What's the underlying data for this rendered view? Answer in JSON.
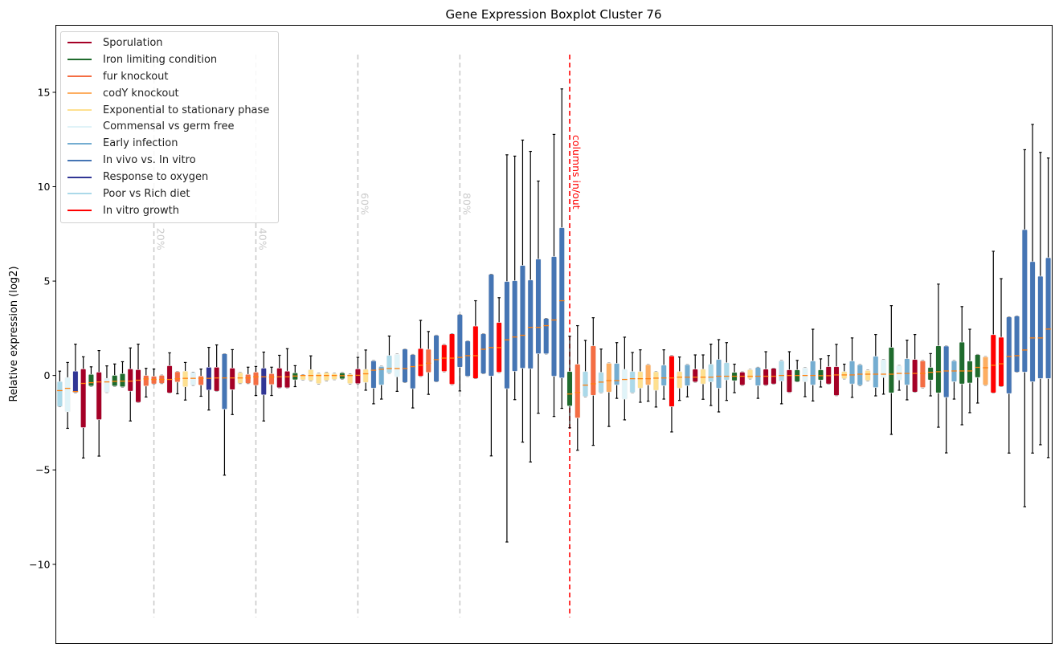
{
  "chart_data": {
    "type": "boxplot",
    "title": "Gene Expression Boxplot Cluster 76",
    "xlabel": "",
    "ylabel": "Relative expression (log2)",
    "ylim": [
      -14.2,
      18.55
    ],
    "xlim": [
      0.5,
      127.5
    ],
    "yticks": [
      -10,
      -5,
      0,
      5,
      10,
      15
    ],
    "ytick_labels": [
      "−10",
      "−5",
      "0",
      "5",
      "10",
      "15"
    ],
    "grid": false,
    "legend_position": "top-left",
    "median_color": "#ff7f0e",
    "groups": [
      {
        "key": "S",
        "name": "Sporulation",
        "color": "#a50026"
      },
      {
        "key": "I",
        "name": "Iron limiting condition",
        "color": "#1f6b2d"
      },
      {
        "key": "F",
        "name": "fur knockout",
        "color": "#f46d43"
      },
      {
        "key": "C",
        "name": "codY knockout",
        "color": "#fdae61"
      },
      {
        "key": "E",
        "name": "Exponential to stationary phase",
        "color": "#fee090"
      },
      {
        "key": "M",
        "name": "Commensal vs germ free",
        "color": "#e0f3f8"
      },
      {
        "key": "A",
        "name": "Early infection",
        "color": "#74add1"
      },
      {
        "key": "V",
        "name": "In vivo vs. In vitro",
        "color": "#4575b4"
      },
      {
        "key": "O",
        "name": "Response to oxygen",
        "color": "#313695"
      },
      {
        "key": "P",
        "name": "Poor vs Rich diet",
        "color": "#abd9e9"
      },
      {
        "key": "R",
        "name": "In vitro growth",
        "color": "#ff0000"
      }
    ],
    "vlines": [
      {
        "x": 13,
        "label": "20%",
        "color": "#c8c8c8"
      },
      {
        "x": 26,
        "label": "40%",
        "color": "#c8c8c8"
      },
      {
        "x": 39,
        "label": "60%",
        "color": "#c8c8c8"
      },
      {
        "x": 52,
        "label": "80%",
        "color": "#c8c8c8"
      },
      {
        "x": 66,
        "label": "columns in/out",
        "color": "#ff0000"
      }
    ],
    "vline_range": [
      -12.8,
      17.0
    ],
    "box_fields": [
      "group",
      "whisker_low",
      "q1",
      "median",
      "q3",
      "whisker_high"
    ],
    "boxes": [
      [
        "P",
        -1.65,
        -1.65,
        -0.8,
        -0.32,
        0.23
      ],
      [
        "M",
        -2.8,
        -1.92,
        -0.68,
        -0.11,
        0.69
      ],
      [
        "O",
        -0.9,
        -0.9,
        -0.85,
        0.23,
        1.66
      ],
      [
        "S",
        -4.37,
        -2.76,
        -0.42,
        0.35,
        0.99
      ],
      [
        "I",
        -0.56,
        -0.56,
        -0.38,
        0.06,
        0.46
      ],
      [
        "S",
        -4.27,
        -2.34,
        -0.34,
        0.18,
        1.32
      ],
      [
        "M",
        -0.89,
        -0.89,
        -0.34,
        -0.15,
        0.51
      ],
      [
        "I",
        -0.56,
        -0.56,
        -0.31,
        0.01,
        0.61
      ],
      [
        "I",
        -0.6,
        -0.6,
        -0.3,
        0.1,
        0.73
      ],
      [
        "S",
        -2.41,
        -0.83,
        -0.3,
        0.35,
        1.46
      ],
      [
        "S",
        -1.42,
        -1.42,
        -0.25,
        0.31,
        1.66
      ],
      [
        "F",
        -1.14,
        -0.56,
        -0.18,
        0,
        0.38
      ],
      [
        "F",
        -0.45,
        -0.45,
        -0.21,
        -0.04,
        0.34
      ],
      [
        "F",
        -0.42,
        -0.42,
        -0.21,
        0.01,
        0.01
      ],
      [
        "S",
        -0.92,
        -0.92,
        -0.21,
        0.52,
        1.2
      ],
      [
        "F",
        -0.97,
        -0.35,
        -0.17,
        0.2,
        0.2
      ],
      [
        "E",
        -1.3,
        -0.6,
        -0.15,
        0.23,
        0.69
      ],
      [
        "M",
        -0.51,
        -0.51,
        -0.15,
        0.17,
        0.17
      ],
      [
        "F",
        -1.1,
        -0.51,
        -0.15,
        -0.03,
        0.34
      ],
      [
        "O",
        -1.83,
        -0.77,
        -0.15,
        0.44,
        1.49
      ],
      [
        "S",
        -0.83,
        -0.83,
        -0.13,
        0.44,
        1.62
      ],
      [
        "V",
        -5.28,
        -1.79,
        -0.13,
        1.15,
        1.15
      ],
      [
        "S",
        -2.07,
        -0.75,
        -0.13,
        0.39,
        1.37
      ],
      [
        "E",
        -0.42,
        -0.42,
        -0.13,
        0.15,
        0.15
      ],
      [
        "F",
        -0.42,
        -0.42,
        -0.13,
        0.06,
        0.44
      ],
      [
        "F",
        -1.06,
        -0.52,
        -0.07,
        0.18,
        0.48
      ],
      [
        "O",
        -2.41,
        -1.03,
        -0.07,
        0.39,
        1.24
      ],
      [
        "F",
        -1.06,
        -0.48,
        -0.08,
        0.1,
        0.44
      ],
      [
        "S",
        -0.65,
        -0.65,
        -0.07,
        0.39,
        1.07
      ],
      [
        "S",
        -0.65,
        -0.65,
        -0.07,
        0.23,
        1.42
      ],
      [
        "I",
        -0.59,
        -0.23,
        -0.03,
        0.14,
        0.52
      ],
      [
        "E",
        -0.23,
        -0.23,
        0,
        0.04,
        0.04
      ],
      [
        "E",
        -0.27,
        -0.27,
        0,
        0.31,
        1.04
      ],
      [
        "E",
        -0.43,
        -0.43,
        0,
        0.1,
        0.1
      ],
      [
        "E",
        -0.27,
        -0.27,
        0,
        0.16,
        0.16
      ],
      [
        "E",
        -0.21,
        -0.21,
        0,
        0.1,
        0.1
      ],
      [
        "I",
        -0.18,
        -0.18,
        -0.01,
        0.14,
        0.14
      ],
      [
        "E",
        -0.43,
        -0.43,
        0,
        0.07,
        0.07
      ],
      [
        "S",
        -0.43,
        -0.43,
        0.01,
        0.35,
        0.96
      ],
      [
        "E",
        -0.78,
        -0.37,
        0.09,
        0.33,
        1.35
      ],
      [
        "V",
        -1.5,
        -0.67,
        0.28,
        0.78,
        0.78
      ],
      [
        "A",
        -1.25,
        -0.5,
        0.33,
        0.48,
        0.48
      ],
      [
        "P",
        0.13,
        0.13,
        0.37,
        1.06,
        2.09
      ],
      [
        "M",
        -0.84,
        -0.07,
        0.37,
        1.12,
        1.12
      ],
      [
        "V",
        -0.37,
        -0.37,
        0.37,
        1.4,
        1.4
      ],
      [
        "V",
        -1.72,
        -0.7,
        0.47,
        1.11,
        1.11
      ],
      [
        "R",
        -0.04,
        -0.04,
        0.54,
        1.43,
        2.92
      ],
      [
        "F",
        -1.0,
        0.16,
        0.65,
        1.39,
        2.33
      ],
      [
        "V",
        -0.33,
        -0.33,
        0.84,
        2.13,
        2.13
      ],
      [
        "R",
        0.21,
        0.21,
        0.92,
        1.63,
        1.63
      ],
      [
        "R",
        -0.47,
        -0.47,
        0.92,
        2.21,
        2.21
      ],
      [
        "V",
        -0.82,
        0.44,
        0.96,
        3.23,
        3.23
      ],
      [
        "V",
        -0.04,
        -0.04,
        1.05,
        1.83,
        1.83
      ],
      [
        "R",
        -0.16,
        -0.16,
        1.05,
        2.62,
        3.96
      ],
      [
        "V",
        0.1,
        0.1,
        1.39,
        2.21,
        2.21
      ],
      [
        "V",
        -4.26,
        -0.03,
        1.48,
        5.36,
        5.36
      ],
      [
        "R",
        0.17,
        0.17,
        1.48,
        2.81,
        4.12
      ],
      [
        "V",
        -8.82,
        -0.7,
        1.89,
        4.98,
        11.69
      ],
      [
        "V",
        -1.28,
        0.22,
        2.04,
        5.02,
        11.62
      ],
      [
        "V",
        -3.53,
        0.38,
        2.13,
        5.83,
        12.47
      ],
      [
        "V",
        -4.58,
        0.36,
        2.55,
        5.06,
        11.87
      ],
      [
        "V",
        -2.0,
        1.15,
        2.55,
        6.17,
        10.3
      ],
      [
        "V",
        1.15,
        1.15,
        2.64,
        3.02,
        3.02
      ],
      [
        "V",
        -2.17,
        -0.04,
        2.94,
        6.3,
        12.77
      ],
      [
        "V",
        -1.74,
        -0.13,
        3.96,
        7.83,
        15.18
      ],
      [
        "I",
        -2.77,
        -1.62,
        -0.98,
        0.21,
        2.08
      ],
      [
        "F",
        -3.96,
        -2.25,
        -0.9,
        0.6,
        2.64
      ],
      [
        "P",
        -1.12,
        -1.12,
        -0.51,
        0.21,
        1.86
      ],
      [
        "F",
        -3.7,
        -1.05,
        -0.44,
        1.57,
        3.06
      ],
      [
        "P",
        -0.91,
        -0.91,
        -0.35,
        0.17,
        1.4
      ],
      [
        "C",
        -2.7,
        -0.88,
        -0.27,
        0.65,
        0.65
      ],
      [
        "A",
        -1.21,
        -0.5,
        -0.27,
        0.64,
        1.74
      ],
      [
        "M",
        -2.35,
        -1.25,
        -0.21,
        0.33,
        2.03
      ],
      [
        "P",
        -0.91,
        -0.91,
        -0.17,
        0.21,
        1.22
      ],
      [
        "E",
        -1.42,
        -0.67,
        -0.17,
        0.21,
        1.36
      ],
      [
        "C",
        -1.36,
        -0.5,
        -0.17,
        0.57,
        0.57
      ],
      [
        "E",
        -1.67,
        -0.79,
        -0.14,
        0.2,
        0.2
      ],
      [
        "A",
        -1.25,
        -0.54,
        -0.13,
        0.55,
        1.36
      ],
      [
        "R",
        -2.99,
        -1.65,
        -0.13,
        1.04,
        1.04
      ],
      [
        "E",
        -1.32,
        -0.67,
        -0.09,
        0.21,
        0.98
      ],
      [
        "A",
        -1.13,
        -0.54,
        -0.09,
        0.57,
        0.57
      ],
      [
        "S",
        -0.34,
        -0.34,
        -0.09,
        0.34,
        1.09
      ],
      [
        "E",
        -1.26,
        -0.45,
        -0.09,
        0.34,
        1.09
      ],
      [
        "P",
        -1.59,
        -0.34,
        -0.09,
        0.6,
        1.66
      ],
      [
        "A",
        -1.93,
        -0.67,
        -0.04,
        0.85,
        1.9
      ],
      [
        "P",
        -1.32,
        -0.24,
        -0.04,
        0.68,
        1.74
      ],
      [
        "I",
        -0.91,
        -0.28,
        -0.04,
        0.17,
        0.6
      ],
      [
        "S",
        -0.51,
        -0.51,
        -0.04,
        0.18,
        0.18
      ],
      [
        "E",
        -0.17,
        -0.17,
        -0.04,
        0.31,
        0.31
      ],
      [
        "A",
        -1.21,
        -0.54,
        -0.04,
        0.43,
        0.43
      ],
      [
        "S",
        -0.51,
        -0.51,
        -0.04,
        0.34,
        1.26
      ],
      [
        "S",
        -0.45,
        -0.45,
        -0.04,
        0.38,
        0.38
      ],
      [
        "P",
        -1.5,
        -0.3,
        0,
        0.78,
        0.78
      ],
      [
        "S",
        -0.89,
        -0.89,
        0,
        0.3,
        1.26
      ],
      [
        "I",
        -0.33,
        -0.33,
        0,
        0.3,
        0.8
      ],
      [
        "M",
        -1.12,
        -0.33,
        0,
        0.4,
        0.4
      ],
      [
        "A",
        -1.35,
        -0.5,
        0,
        0.77,
        2.45
      ],
      [
        "I",
        -0.61,
        -0.24,
        -0.01,
        0.3,
        0.88
      ],
      [
        "S",
        -0.45,
        -0.45,
        -0.01,
        0.47,
        1.06
      ],
      [
        "S",
        -1.06,
        -1.06,
        0.03,
        0.47,
        1.65
      ],
      [
        "E",
        -0.17,
        -0.17,
        0.03,
        0.21,
        0.6
      ],
      [
        "A",
        -1.16,
        -0.45,
        0.03,
        0.77,
        1.99
      ],
      [
        "A",
        -0.52,
        -0.52,
        0.07,
        0.57,
        0.57
      ],
      [
        "E",
        -0.27,
        -0.27,
        0.07,
        0.27,
        0.27
      ],
      [
        "A",
        -1.08,
        -0.64,
        0.07,
        1.02,
        2.17
      ],
      [
        "M",
        -0.99,
        -0.11,
        0.07,
        0.84,
        0.84
      ],
      [
        "I",
        -3.12,
        -0.92,
        0.07,
        1.49,
        3.7
      ],
      [
        "M",
        -0.78,
        -0.24,
        0.11,
        0.52,
        0.52
      ],
      [
        "A",
        -1.29,
        -0.5,
        0.11,
        0.89,
        1.87
      ],
      [
        "S",
        -0.88,
        -0.88,
        0.11,
        0.85,
        2.17
      ],
      [
        "F",
        -0.64,
        -0.64,
        0.11,
        0.78,
        0.78
      ],
      [
        "I",
        -1.08,
        -0.24,
        0.17,
        0.43,
        1.16
      ],
      [
        "I",
        -2.74,
        -0.92,
        0.2,
        1.57,
        4.84
      ],
      [
        "V",
        -4.1,
        -1.16,
        0.24,
        1.56,
        1.56
      ],
      [
        "A",
        -1.25,
        -0.33,
        0.24,
        0.78,
        0.78
      ],
      [
        "I",
        -2.61,
        -0.45,
        0.24,
        1.77,
        3.65
      ],
      [
        "I",
        -1.97,
        -0.4,
        0.24,
        0.77,
        2.45
      ],
      [
        "I",
        -1.46,
        -0.11,
        0.43,
        1.11,
        1.11
      ],
      [
        "C",
        -0.51,
        -0.51,
        0.41,
        0.99,
        0.99
      ],
      [
        "R",
        -0.92,
        -0.92,
        0.54,
        2.16,
        6.58
      ],
      [
        "R",
        -0.58,
        -0.58,
        0.62,
        2.03,
        5.13
      ],
      [
        "V",
        -4.11,
        -0.96,
        1.01,
        3.1,
        3.1
      ],
      [
        "V",
        0.18,
        0.18,
        1.05,
        3.15,
        3.15
      ],
      [
        "V",
        -6.95,
        0.18,
        1.35,
        7.73,
        11.96
      ],
      [
        "V",
        -4.11,
        -0.33,
        1.99,
        6.03,
        13.3
      ],
      [
        "V",
        -3.67,
        -0.16,
        1.99,
        5.26,
        11.82
      ],
      [
        "V",
        -4.35,
        -0.16,
        2.46,
        6.24,
        11.52
      ]
    ]
  }
}
